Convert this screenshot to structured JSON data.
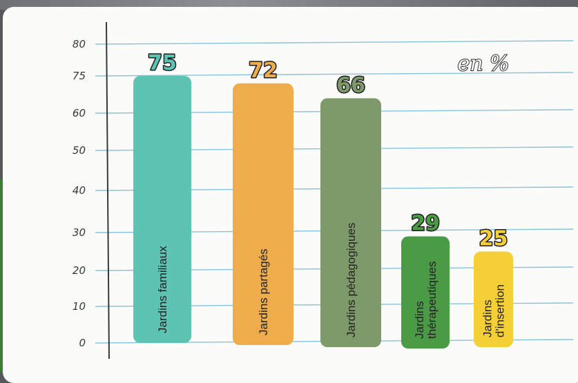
{
  "chart_data": {
    "type": "bar",
    "categories": [
      "Jardins familiaux",
      "Jardins partagés",
      "Jardins pédagogiques",
      "Jardins thérapeutiques",
      "Jardins d'insertion"
    ],
    "category_lines": [
      [
        "Jardins familiaux"
      ],
      [
        "Jardins partagés"
      ],
      [
        "Jardins pédagogiques"
      ],
      [
        "Jardins",
        "thérapeutiques"
      ],
      [
        "Jardins",
        "d'insertion"
      ]
    ],
    "values": [
      75,
      72,
      66,
      29,
      25
    ],
    "value_labels": [
      "75",
      "72",
      "66",
      "29",
      "25"
    ],
    "bar_colors": [
      "#5dc3b3",
      "#eeac4a",
      "#7e9a6a",
      "#4b9a45",
      "#f4cf35"
    ],
    "label_colors": [
      "#5dc3b3",
      "#eeac4a",
      "#7e9a6a",
      "#4b9a45",
      "#f4cf35"
    ],
    "y_ticks": [
      "0",
      "10",
      "20",
      "30",
      "40",
      "50",
      "60",
      "75",
      "80"
    ],
    "unit_label": "en %",
    "grid": true,
    "grid_color": "#86c3df"
  }
}
